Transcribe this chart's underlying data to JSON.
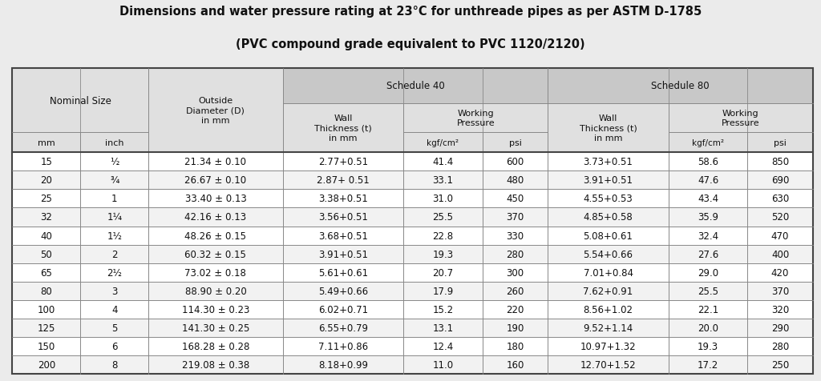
{
  "title_line1": "Dimensions and water pressure rating at 23°C for unthreade pipes as per ASTM D-1785",
  "title_line2": "(PVC compound grade equivalent to PVC 1120/2120)",
  "background_color": "#ebebeb",
  "rows": [
    [
      "15",
      "½",
      "21.34 ± 0.10",
      "2.77+0.51",
      "41.4",
      "600",
      "3.73+0.51",
      "58.6",
      "850"
    ],
    [
      "20",
      "¾",
      "26.67 ± 0.10",
      "2.87+ 0.51",
      "33.1",
      "480",
      "3.91+0.51",
      "47.6",
      "690"
    ],
    [
      "25",
      "1",
      "33.40 ± 0.13",
      "3.38+0.51",
      "31.0",
      "450",
      "4.55+0.53",
      "43.4",
      "630"
    ],
    [
      "32",
      "1¼",
      "42.16 ± 0.13",
      "3.56+0.51",
      "25.5",
      "370",
      "4.85+0.58",
      "35.9",
      "520"
    ],
    [
      "40",
      "1½",
      "48.26 ± 0.15",
      "3.68+0.51",
      "22.8",
      "330",
      "5.08+0.61",
      "32.4",
      "470"
    ],
    [
      "50",
      "2",
      "60.32 ± 0.15",
      "3.91+0.51",
      "19.3",
      "280",
      "5.54+0.66",
      "27.6",
      "400"
    ],
    [
      "65",
      "2½",
      "73.02 ± 0.18",
      "5.61+0.61",
      "20.7",
      "300",
      "7.01+0.84",
      "29.0",
      "420"
    ],
    [
      "80",
      "3",
      "88.90 ± 0.20",
      "5.49+0.66",
      "17.9",
      "260",
      "7.62+0.91",
      "25.5",
      "370"
    ],
    [
      "100",
      "4",
      "114.30 ± 0.23",
      "6.02+0.71",
      "15.2",
      "220",
      "8.56+1.02",
      "22.1",
      "320"
    ],
    [
      "125",
      "5",
      "141.30 ± 0.25",
      "6.55+0.79",
      "13.1",
      "190",
      "9.52+1.14",
      "20.0",
      "290"
    ],
    [
      "150",
      "6",
      "168.28 ± 0.28",
      "7.11+0.86",
      "12.4",
      "180",
      "10.97+1.32",
      "19.3",
      "280"
    ],
    [
      "200",
      "8",
      "219.08 ± 0.38",
      "8.18+0.99",
      "11.0",
      "160",
      "12.70+1.52",
      "17.2",
      "250"
    ]
  ],
  "col_ratios": [
    0.075,
    0.075,
    0.148,
    0.133,
    0.087,
    0.072,
    0.133,
    0.087,
    0.072
  ],
  "header_bg_dark": "#c8c8c8",
  "header_bg_light": "#e0e0e0",
  "white": "#ffffff",
  "light_gray": "#f2f2f2",
  "border_dark": "#444444",
  "border_light": "#888888",
  "title_fontsize": 10.5,
  "header_fontsize": 8.5,
  "subheader_fontsize": 8.0,
  "data_fontsize": 8.5
}
